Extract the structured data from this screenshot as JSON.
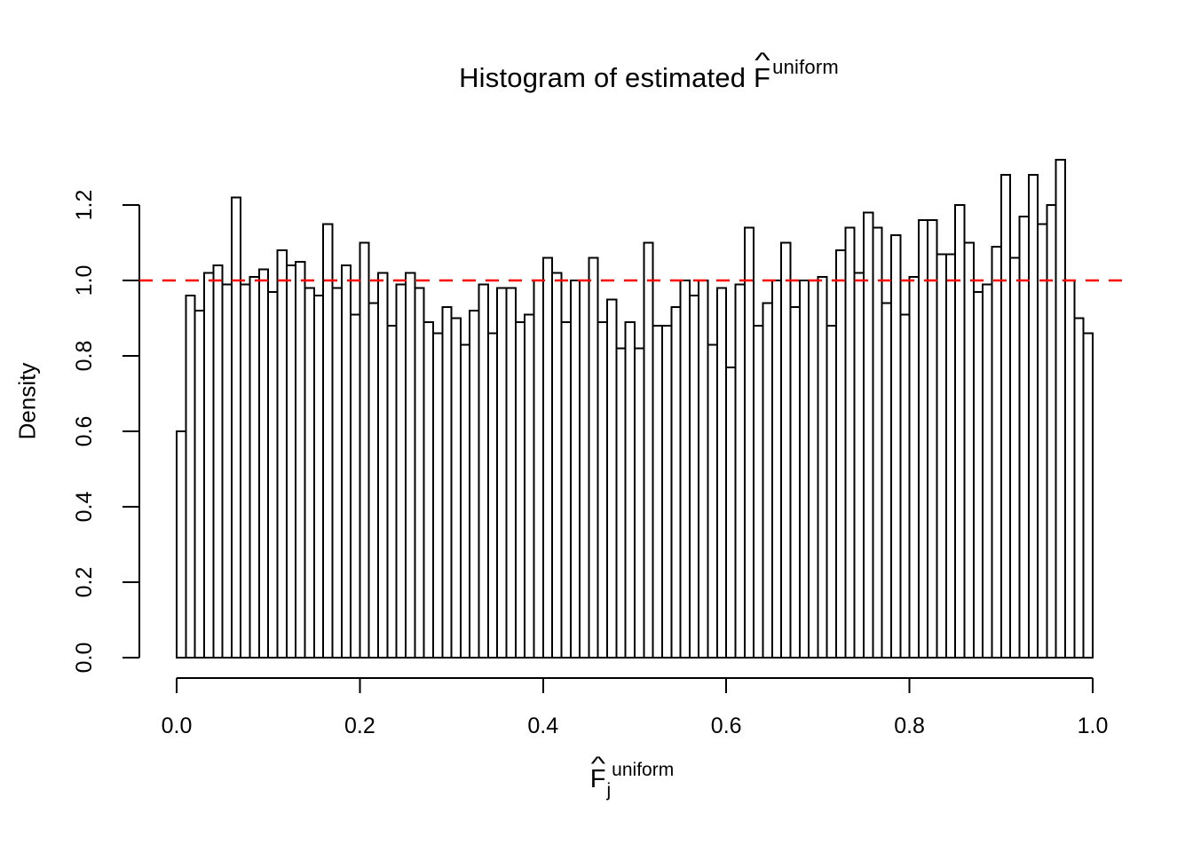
{
  "figure": {
    "background": "#FFFFFF",
    "title": {
      "prefix": "Histogram of estimated ",
      "symbol": "F",
      "hat": "^",
      "superscript": "uniform"
    },
    "x_axis": {
      "label": {
        "symbol": "F",
        "hat": "^",
        "subscript": "j",
        "superscript": "uniform"
      },
      "tick_labels": [
        "0.0",
        "0.2",
        "0.4",
        "0.6",
        "0.8",
        "1.0"
      ]
    },
    "y_axis": {
      "label": "Density",
      "tick_labels": [
        "0.0",
        "0.2",
        "0.4",
        "0.6",
        "0.8",
        "1.0",
        "1.2"
      ]
    },
    "reference_line": {
      "value": 1.0,
      "color": "#FF0000",
      "style": "dashed"
    }
  },
  "chart_data": {
    "type": "bar",
    "subtype": "histogram",
    "title": "Histogram of estimated F^uniform",
    "xlabel": "F_j^uniform",
    "ylabel": "Density",
    "xlim": [
      0.0,
      1.0
    ],
    "ylim": [
      0.0,
      1.2
    ],
    "grid": false,
    "bin_width": 0.01,
    "bin_start": 0.0,
    "n_bins": 100,
    "bar_fill": "#FFFFFF",
    "bar_stroke": "#000000",
    "reference_line_y": 1.0,
    "reference_line_color": "#FF0000",
    "densities": [
      0.6,
      0.96,
      0.92,
      1.02,
      1.04,
      0.99,
      1.22,
      0.99,
      1.01,
      1.03,
      0.97,
      1.08,
      1.04,
      1.05,
      0.98,
      0.96,
      1.15,
      0.98,
      1.04,
      0.91,
      1.1,
      0.94,
      1.02,
      0.88,
      0.99,
      1.02,
      0.98,
      0.89,
      0.86,
      0.93,
      0.9,
      0.83,
      0.92,
      0.99,
      0.86,
      0.98,
      0.98,
      0.89,
      0.91,
      1.0,
      1.06,
      1.02,
      0.89,
      1.0,
      1.0,
      1.06,
      0.89,
      0.95,
      0.82,
      0.89,
      0.82,
      1.1,
      0.88,
      0.88,
      0.93,
      1.0,
      0.96,
      1.0,
      0.83,
      0.98,
      0.77,
      0.99,
      1.14,
      0.88,
      0.94,
      1.0,
      1.1,
      0.93,
      1.0,
      1.0,
      1.01,
      0.88,
      1.08,
      1.14,
      1.02,
      1.18,
      1.14,
      0.94,
      1.12,
      0.91,
      1.01,
      1.16,
      1.16,
      1.07,
      1.07,
      1.2,
      1.1,
      0.97,
      0.99,
      1.09,
      1.28,
      1.06,
      1.17,
      1.28,
      1.15,
      1.2,
      1.32,
      1.0,
      0.9,
      0.86
    ]
  }
}
